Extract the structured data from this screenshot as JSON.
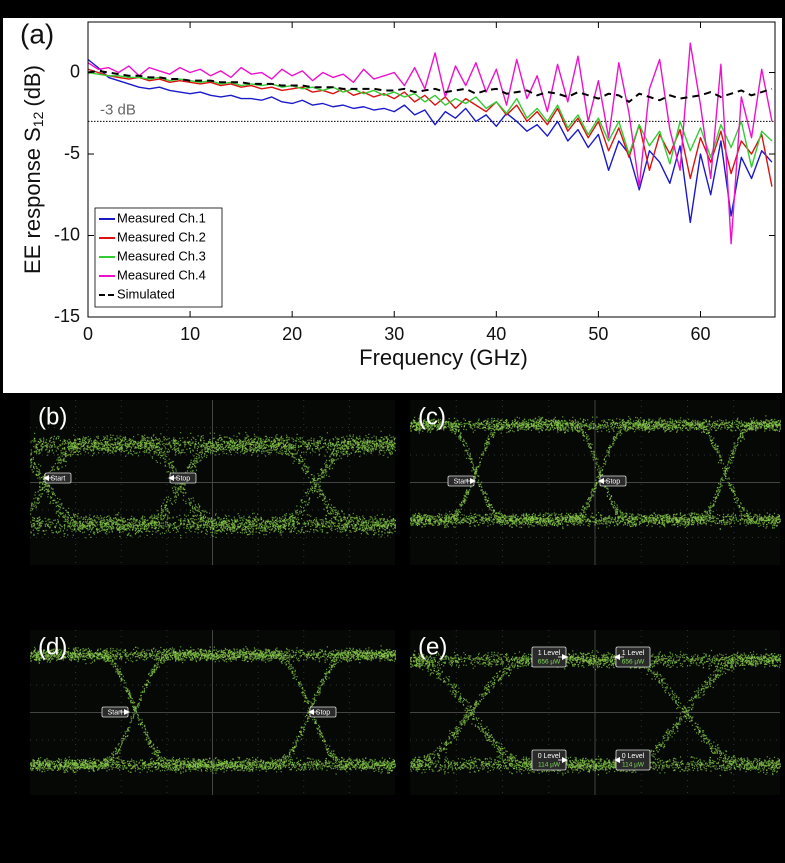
{
  "chart_data": {
    "type": "line",
    "panel_label": "(a)",
    "x_label": "Frequency (GHz)",
    "y_label": {
      "text": "EE response S",
      "subscript": "12",
      "suffix": "(dB)"
    },
    "x": [
      0,
      1,
      2,
      3,
      4,
      5,
      6,
      7,
      8,
      9,
      10,
      11,
      12,
      13,
      14,
      15,
      16,
      17,
      18,
      19,
      20,
      21,
      22,
      23,
      24,
      25,
      26,
      27,
      28,
      29,
      30,
      31,
      32,
      33,
      34,
      35,
      36,
      37,
      38,
      39,
      40,
      41,
      42,
      43,
      44,
      45,
      46,
      47,
      48,
      49,
      50,
      51,
      52,
      53,
      54,
      55,
      56,
      57,
      58,
      59,
      60,
      61,
      62,
      63,
      64,
      65,
      66,
      67
    ],
    "series": [
      {
        "name": "Measured Ch.1",
        "color": "#1a1acc",
        "style": "solid",
        "values": [
          0.8,
          0.3,
          -0.3,
          -0.5,
          -0.7,
          -0.9,
          -1.0,
          -0.9,
          -1.1,
          -1.2,
          -1.3,
          -1.2,
          -1.4,
          -1.5,
          -1.4,
          -1.6,
          -1.6,
          -1.7,
          -1.5,
          -1.8,
          -1.9,
          -1.7,
          -2.0,
          -1.9,
          -2.1,
          -2.0,
          -2.2,
          -2.1,
          -2.3,
          -2.2,
          -2.4,
          -2.0,
          -2.6,
          -2.3,
          -3.2,
          -2.4,
          -2.8,
          -2.2,
          -3.0,
          -2.6,
          -3.3,
          -2.5,
          -3.0,
          -3.6,
          -3.2,
          -3.9,
          -3.0,
          -4.2,
          -3.5,
          -4.6,
          -3.8,
          -6.0,
          -4.2,
          -5.0,
          -7.2,
          -4.8,
          -5.5,
          -6.8,
          -4.5,
          -9.2,
          -5.0,
          -7.5,
          -4.2,
          -8.8,
          -5.2,
          -6.5,
          -4.8,
          -5.5
        ]
      },
      {
        "name": "Measured Ch.2",
        "color": "#dd1111",
        "style": "solid",
        "values": [
          0.2,
          0.0,
          -0.2,
          -0.3,
          -0.4,
          -0.3,
          -0.5,
          -0.4,
          -0.6,
          -0.5,
          -0.6,
          -0.7,
          -0.6,
          -0.8,
          -0.7,
          -0.9,
          -0.8,
          -1.0,
          -0.9,
          -1.1,
          -1.0,
          -0.9,
          -1.2,
          -1.1,
          -1.3,
          -1.0,
          -1.4,
          -1.2,
          -1.5,
          -1.3,
          -1.6,
          -1.2,
          -1.8,
          -1.4,
          -2.0,
          -1.5,
          -2.2,
          -1.6,
          -2.0,
          -2.4,
          -1.8,
          -2.6,
          -2.0,
          -3.0,
          -2.4,
          -3.2,
          -2.2,
          -3.6,
          -2.8,
          -4.0,
          -3.0,
          -4.8,
          -3.4,
          -5.2,
          -3.2,
          -6.0,
          -3.8,
          -5.0,
          -3.5,
          -6.5,
          -4.0,
          -5.5,
          -3.6,
          -6.2,
          -4.2,
          -5.0,
          -3.8,
          -7.0
        ]
      },
      {
        "name": "Measured Ch.3",
        "color": "#33cc33",
        "style": "solid",
        "values": [
          0.0,
          -0.1,
          -0.2,
          -0.2,
          -0.3,
          -0.3,
          -0.4,
          -0.3,
          -0.5,
          -0.4,
          -0.5,
          -0.6,
          -0.5,
          -0.7,
          -0.6,
          -0.8,
          -0.7,
          -0.8,
          -0.7,
          -0.9,
          -0.8,
          -1.0,
          -0.9,
          -1.1,
          -0.9,
          -1.2,
          -1.0,
          -1.3,
          -1.1,
          -1.4,
          -1.2,
          -1.5,
          -1.3,
          -1.8,
          -1.4,
          -2.0,
          -1.6,
          -1.9,
          -1.5,
          -2.2,
          -1.8,
          -2.5,
          -1.6,
          -2.8,
          -2.2,
          -3.0,
          -2.0,
          -3.4,
          -2.6,
          -3.8,
          -2.8,
          -4.2,
          -3.0,
          -5.0,
          -3.2,
          -4.5,
          -3.6,
          -5.6,
          -3.0,
          -4.8,
          -3.4,
          -5.2,
          -3.2,
          -4.6,
          -3.0,
          -5.8,
          -3.6,
          -4.2
        ]
      },
      {
        "name": "Measured Ch.4",
        "color": "#ee11cc",
        "style": "solid",
        "values": [
          0.6,
          0.2,
          0.3,
          0.0,
          0.4,
          -0.2,
          0.3,
          0.1,
          -0.1,
          0.3,
          0.0,
          0.2,
          -0.2,
          0.1,
          -0.3,
          0.3,
          -0.1,
          0.0,
          -0.4,
          0.2,
          -0.2,
          0.1,
          -0.5,
          0.0,
          -0.3,
          -0.1,
          -0.6,
          0.2,
          -0.4,
          -0.2,
          0.0,
          -0.8,
          0.3,
          -1.0,
          1.2,
          -1.5,
          0.4,
          -0.8,
          0.6,
          -1.2,
          0.2,
          -2.0,
          0.8,
          -1.6,
          -0.2,
          -2.4,
          0.5,
          -1.8,
          1.0,
          -3.0,
          -0.5,
          -4.0,
          0.6,
          -2.5,
          -7.0,
          -1.0,
          0.8,
          -3.5,
          -6.0,
          1.8,
          -2.0,
          -6.5,
          0.5,
          -10.5,
          -1.5,
          -4.0,
          0.2,
          -3.0
        ]
      },
      {
        "name": "Simulated",
        "color": "#000000",
        "style": "dashed",
        "values": [
          0,
          0.1,
          0.0,
          -0.1,
          -0.2,
          -0.2,
          -0.3,
          -0.3,
          -0.4,
          -0.4,
          -0.5,
          -0.5,
          -0.5,
          -0.6,
          -0.6,
          -0.6,
          -0.7,
          -0.7,
          -0.7,
          -0.8,
          -0.8,
          -0.8,
          -0.9,
          -0.9,
          -0.9,
          -1.0,
          -1.0,
          -1.0,
          -1.0,
          -1.1,
          -1.1,
          -1.0,
          -1.2,
          -1.1,
          -1.0,
          -1.2,
          -1.1,
          -1.0,
          -1.3,
          -1.1,
          -1.0,
          -1.3,
          -1.2,
          -1.1,
          -1.4,
          -1.2,
          -1.3,
          -1.5,
          -1.2,
          -1.4,
          -1.6,
          -1.3,
          -1.4,
          -1.8,
          -1.3,
          -1.5,
          -1.7,
          -1.4,
          -1.6,
          -1.5,
          -1.4,
          -1.2,
          -1.5,
          -1.3,
          -1.1,
          -1.4,
          -1.2,
          -1.0
        ]
      }
    ],
    "xlim": [
      0,
      67.3
    ],
    "xticks": [
      0,
      10,
      20,
      30,
      40,
      50,
      60
    ],
    "ylim": [
      -15,
      3.1
    ],
    "yticks": [
      -15,
      -10,
      -5,
      0
    ],
    "reference_line": {
      "value": -3,
      "label": "-3 dB",
      "color": "#666666",
      "style": "dotted"
    },
    "legend": "lower left",
    "grid": false
  },
  "eye_diagrams": [
    {
      "label": "(b)",
      "markers": [
        {
          "text": "Start"
        },
        {
          "text": "Stop"
        }
      ]
    },
    {
      "label": "(c)",
      "markers": [
        {
          "text": "Start"
        },
        {
          "text": "Stop"
        }
      ]
    },
    {
      "label": "(d)",
      "markers": [
        {
          "text": "Start"
        },
        {
          "text": "Stop"
        }
      ]
    },
    {
      "label": "(e)",
      "markers": [
        {
          "text": "1 Level",
          "value": "656 µW"
        },
        {
          "text": "1 Level",
          "value": "656 µW"
        },
        {
          "text": "0 Level",
          "value": "114 µW"
        },
        {
          "text": "0 Level",
          "value": "114 µW"
        }
      ]
    }
  ]
}
